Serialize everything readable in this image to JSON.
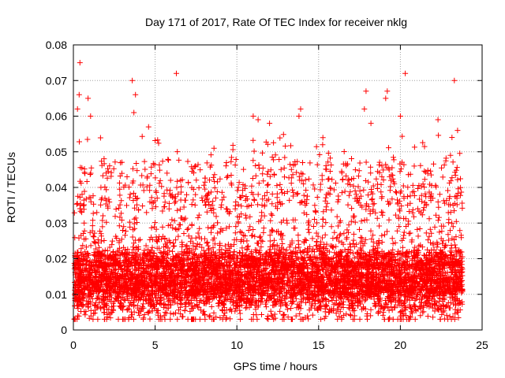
{
  "chart_data": {
    "type": "scatter",
    "title": "Day 171 of 2017, Rate Of TEC Index for receiver nklg",
    "xlabel": "GPS time / hours",
    "ylabel": "ROTI / TECUs",
    "xlim": [
      0,
      25
    ],
    "ylim": [
      0,
      0.08
    ],
    "x_ticks": [
      0,
      5,
      10,
      15,
      20,
      25
    ],
    "x_tick_labels": [
      "0",
      "5",
      "10",
      "15",
      "20",
      "25"
    ],
    "y_ticks": [
      0,
      0.01,
      0.02,
      0.03,
      0.04,
      0.05,
      0.06,
      0.07,
      0.08
    ],
    "y_tick_labels": [
      "0",
      "0.01",
      "0.02",
      "0.03",
      "0.04",
      "0.05",
      "0.06",
      "0.07",
      "0.08"
    ],
    "grid": true,
    "marker": "plus",
    "color": "#ff0000",
    "x_coverage": [
      0.05,
      23.8
    ],
    "y_bulk_range": [
      0.005,
      0.035
    ],
    "outliers": [
      {
        "x": 0.4,
        "y": 0.075
      },
      {
        "x": 0.35,
        "y": 0.066
      },
      {
        "x": 0.25,
        "y": 0.062
      },
      {
        "x": 0.9,
        "y": 0.065
      },
      {
        "x": 1.05,
        "y": 0.06
      },
      {
        "x": 3.6,
        "y": 0.07
      },
      {
        "x": 3.8,
        "y": 0.066
      },
      {
        "x": 3.7,
        "y": 0.061
      },
      {
        "x": 4.6,
        "y": 0.057
      },
      {
        "x": 6.3,
        "y": 0.072
      },
      {
        "x": 8.6,
        "y": 0.051
      },
      {
        "x": 11.0,
        "y": 0.06
      },
      {
        "x": 11.3,
        "y": 0.059
      },
      {
        "x": 12.0,
        "y": 0.058
      },
      {
        "x": 13.9,
        "y": 0.062
      },
      {
        "x": 13.8,
        "y": 0.06
      },
      {
        "x": 17.9,
        "y": 0.067
      },
      {
        "x": 17.8,
        "y": 0.062
      },
      {
        "x": 18.2,
        "y": 0.058
      },
      {
        "x": 19.2,
        "y": 0.067
      },
      {
        "x": 19.1,
        "y": 0.065
      },
      {
        "x": 20.0,
        "y": 0.06
      },
      {
        "x": 20.3,
        "y": 0.072
      },
      {
        "x": 22.3,
        "y": 0.059
      },
      {
        "x": 23.3,
        "y": 0.07
      },
      {
        "x": 23.5,
        "y": 0.056
      }
    ]
  }
}
